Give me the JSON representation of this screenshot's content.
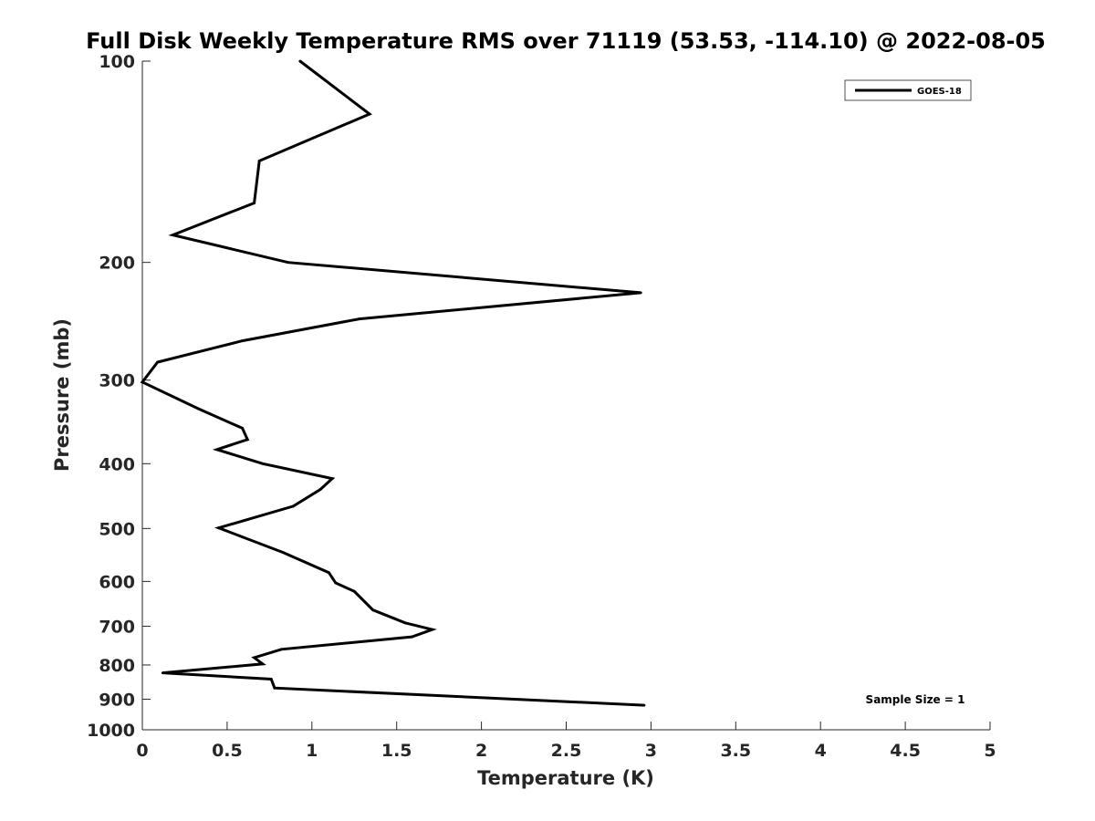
{
  "chart_data": {
    "type": "line",
    "title": "Full Disk Weekly Temperature RMS over 71119 (53.53, -114.10) @ 2022-08-05",
    "xlabel": "Temperature (K)",
    "ylabel": "Pressure (mb)",
    "xlim": [
      0,
      5
    ],
    "ylim": [
      100,
      1000
    ],
    "y_scale": "log",
    "y_reversed": true,
    "x_ticks": [
      "0",
      "0.5",
      "1",
      "1.5",
      "2",
      "2.5",
      "3",
      "3.5",
      "4",
      "4.5",
      "5"
    ],
    "y_ticks": [
      "100",
      "200",
      "300",
      "400",
      "500",
      "600",
      "700",
      "800",
      "900",
      "1000"
    ],
    "grid": false,
    "legend_position": "top-right",
    "series": [
      {
        "name": "GOES-18",
        "color": "#000000",
        "x": [
          0.93,
          1.34,
          0.69,
          0.66,
          0.18,
          0.86,
          2.94,
          1.28,
          0.59,
          0.09,
          0.0,
          0.33,
          0.59,
          0.62,
          0.44,
          0.71,
          1.12,
          1.05,
          0.89,
          0.45,
          0.83,
          1.1,
          1.14,
          1.25,
          1.36,
          1.55,
          1.71,
          1.59,
          0.82,
          0.66,
          0.71,
          0.12,
          0.76,
          0.78,
          2.96
        ],
        "y": [
          100,
          120,
          141,
          163,
          182,
          200,
          222,
          243,
          262,
          282,
          302,
          331,
          354,
          368,
          381,
          400,
          421,
          437,
          463,
          499,
          543,
          582,
          603,
          621,
          662,
          692,
          708,
          726,
          758,
          780,
          797,
          822,
          840,
          866,
          919
        ]
      }
    ],
    "annotations": [
      "Sample Size = 1"
    ]
  }
}
